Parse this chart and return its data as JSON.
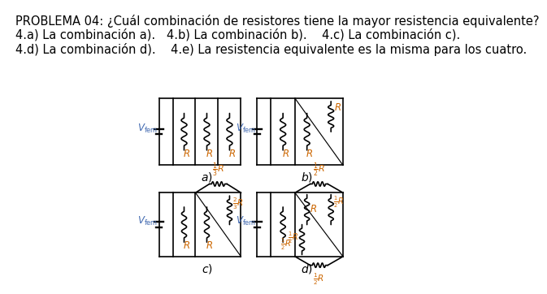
{
  "title_line1": "PROBLEMA 04: ¿Cuál combinación de resistores tiene la mayor resistencia equivalente?",
  "line2": "4.a) La combinación a).   4.b) La combinación b).    4.c) La combinación c).",
  "line3": "4.d) La combinación d).    4.e) La resistencia equivalente es la misma para los cuatro.",
  "bg_color": "#ffffff",
  "text_color": "#000000",
  "blue_color": "#4169b0",
  "orange_color": "#cc6600",
  "font_size_text": 10.5,
  "font_size_label": 8.5,
  "font_size_sublabel": 7.5
}
